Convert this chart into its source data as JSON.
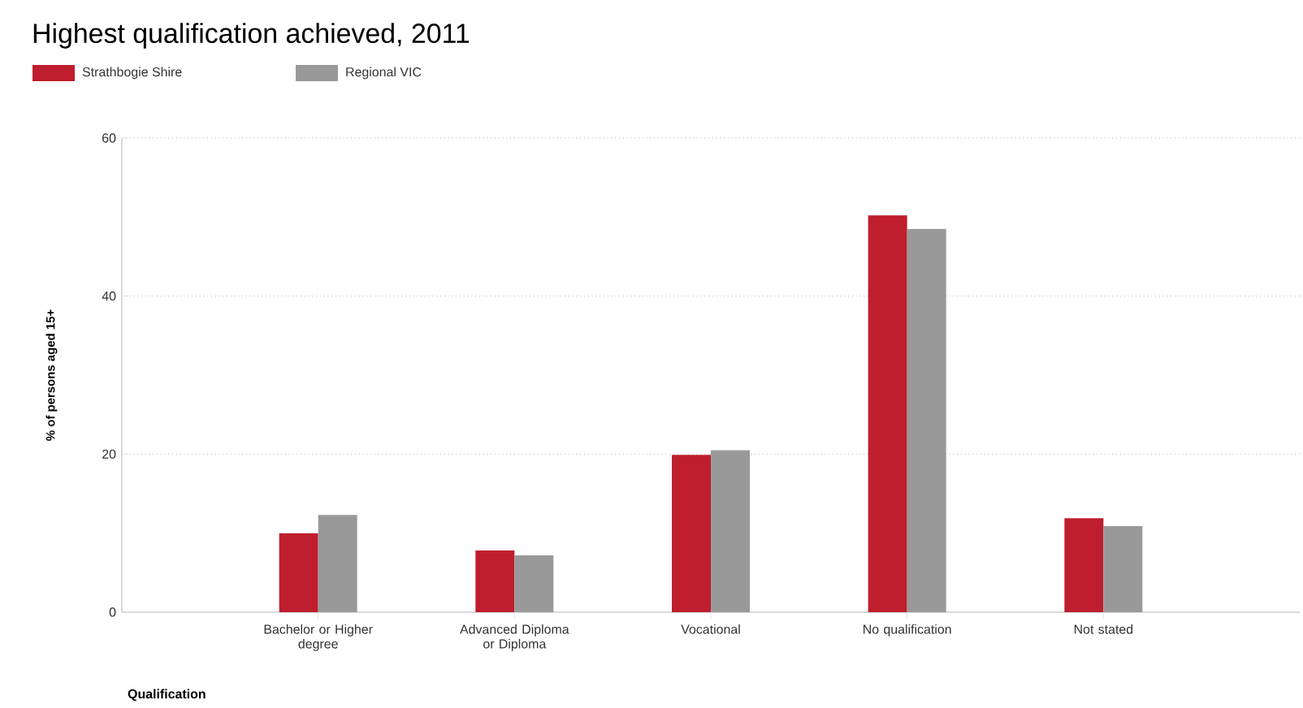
{
  "chart_data": {
    "type": "bar",
    "title": "Highest qualification achieved, 2011",
    "categories": [
      "Bachelor or Higher degree",
      "Advanced Diploma or Diploma",
      "Vocational",
      "No qualification",
      "Not stated"
    ],
    "series": [
      {
        "name": "Strathbogie Shire",
        "color": "#be1e2d",
        "values": [
          10.0,
          7.8,
          19.9,
          50.2,
          11.9
        ]
      },
      {
        "name": "Regional VIC",
        "color": "#999999",
        "values": [
          12.3,
          7.2,
          20.5,
          48.5,
          10.9
        ]
      }
    ],
    "xlabel": "Qualification",
    "ylabel": "% of persons aged 15+",
    "ylim": [
      0,
      60
    ],
    "yticks": [
      0,
      20,
      40,
      60
    ],
    "grid": "y",
    "legend": "top left"
  }
}
